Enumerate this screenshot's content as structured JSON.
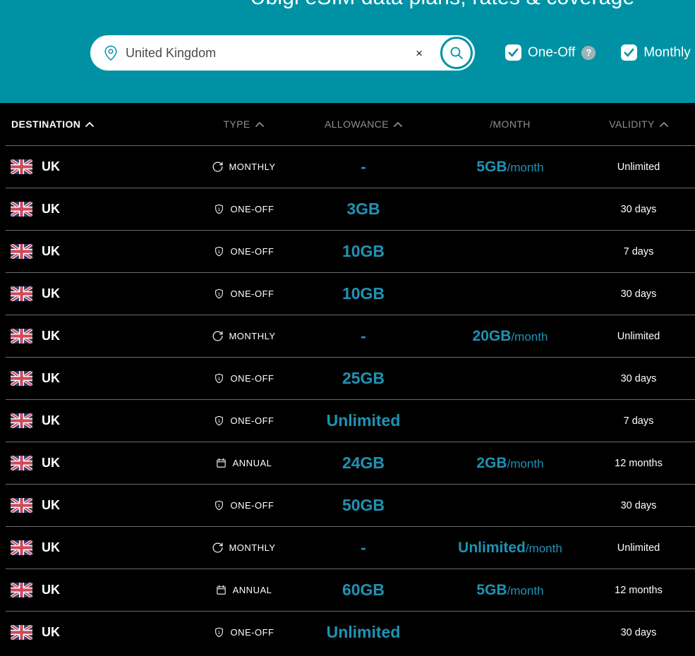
{
  "page": {
    "title": "Ubigi eSIM data plans, rates & coverage"
  },
  "search": {
    "value": "United Kingdom",
    "clear_label": "×"
  },
  "filters": {
    "one_off": {
      "label": "One-Off",
      "help": "?",
      "checked": true
    },
    "monthly": {
      "label": "Monthly",
      "help": "?",
      "checked": true
    }
  },
  "table": {
    "columns": [
      {
        "key": "destination",
        "label": "DESTINATION",
        "sorted": true,
        "sortable": true
      },
      {
        "key": "type",
        "label": "TYPE",
        "sorted": false,
        "sortable": true
      },
      {
        "key": "allowance",
        "label": "ALLOWANCE",
        "sorted": false,
        "sortable": true
      },
      {
        "key": "per_month",
        "label": "/MONTH",
        "sorted": false,
        "sortable": false
      },
      {
        "key": "validity",
        "label": "VALIDITY",
        "sorted": false,
        "sortable": true
      }
    ],
    "type_icons": {
      "MONTHLY": "refresh-icon",
      "ONE-OFF": "shield-one-icon",
      "ANNUAL": "calendar-icon"
    },
    "rows": [
      {
        "destination": "UK",
        "flag": "uk-flag-icon",
        "type": "MONTHLY",
        "allowance": "-",
        "per_month_value": "5GB",
        "per_month_suffix": "/month",
        "validity": "Unlimited"
      },
      {
        "destination": "UK",
        "flag": "uk-flag-icon",
        "type": "ONE-OFF",
        "allowance": "3GB",
        "per_month_value": "",
        "per_month_suffix": "",
        "validity": "30 days"
      },
      {
        "destination": "UK",
        "flag": "uk-flag-icon",
        "type": "ONE-OFF",
        "allowance": "10GB",
        "per_month_value": "",
        "per_month_suffix": "",
        "validity": "7 days"
      },
      {
        "destination": "UK",
        "flag": "uk-flag-icon",
        "type": "ONE-OFF",
        "allowance": "10GB",
        "per_month_value": "",
        "per_month_suffix": "",
        "validity": "30 days"
      },
      {
        "destination": "UK",
        "flag": "uk-flag-icon",
        "type": "MONTHLY",
        "allowance": "-",
        "per_month_value": "20GB",
        "per_month_suffix": "/month",
        "validity": "Unlimited"
      },
      {
        "destination": "UK",
        "flag": "uk-flag-icon",
        "type": "ONE-OFF",
        "allowance": "25GB",
        "per_month_value": "",
        "per_month_suffix": "",
        "validity": "30 days"
      },
      {
        "destination": "UK",
        "flag": "uk-flag-icon",
        "type": "ONE-OFF",
        "allowance": "Unlimited",
        "per_month_value": "",
        "per_month_suffix": "",
        "validity": "7 days"
      },
      {
        "destination": "UK",
        "flag": "uk-flag-icon",
        "type": "ANNUAL",
        "allowance": "24GB",
        "per_month_value": "2GB",
        "per_month_suffix": "/month",
        "validity": "12 months"
      },
      {
        "destination": "UK",
        "flag": "uk-flag-icon",
        "type": "ONE-OFF",
        "allowance": "50GB",
        "per_month_value": "",
        "per_month_suffix": "",
        "validity": "30 days"
      },
      {
        "destination": "UK",
        "flag": "uk-flag-icon",
        "type": "MONTHLY",
        "allowance": "-",
        "per_month_value": "Unlimited",
        "per_month_suffix": "/month",
        "validity": "Unlimited"
      },
      {
        "destination": "UK",
        "flag": "uk-flag-icon",
        "type": "ANNUAL",
        "allowance": "60GB",
        "per_month_value": "5GB",
        "per_month_suffix": "/month",
        "validity": "12 months"
      },
      {
        "destination": "UK",
        "flag": "uk-flag-icon",
        "type": "ONE-OFF",
        "allowance": "Unlimited",
        "per_month_value": "",
        "per_month_suffix": "",
        "validity": "30 days"
      }
    ]
  },
  "colors": {
    "header_bg": "#0092a4",
    "accent": "#1e93b4",
    "table_bg": "#000000",
    "muted": "#8f8f8f",
    "divider": "#6b6b6b"
  }
}
